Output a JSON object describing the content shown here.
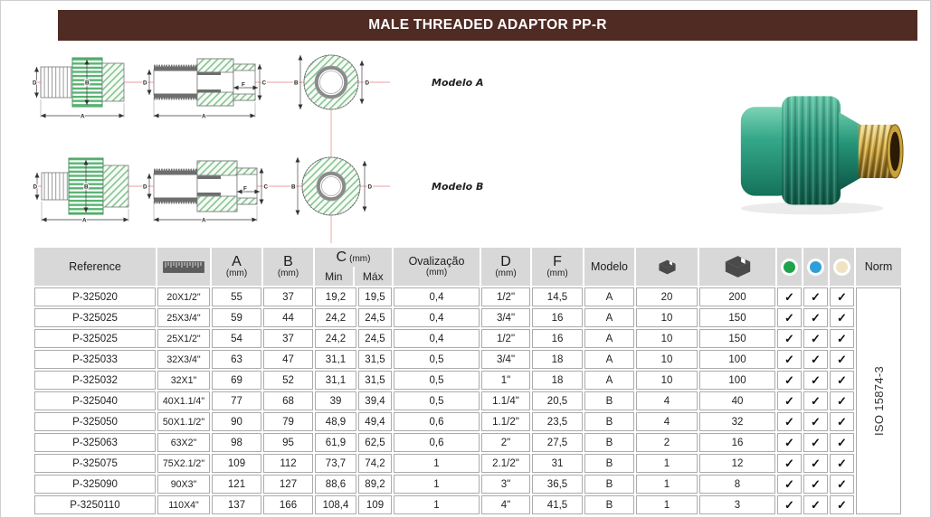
{
  "title": "MALE THREADED ADAPTOR PP-R",
  "drawings": {
    "model_a_label": "Modelo A",
    "model_b_label": "Modelo B",
    "dims": {
      "a": "A",
      "b": "B",
      "c": "C",
      "d": "D",
      "f": "F"
    }
  },
  "table": {
    "header": {
      "reference": "Reference",
      "a": "A",
      "b": "B",
      "c": "C",
      "d": "D",
      "f": "F",
      "unit": "(mm)",
      "min": "Min",
      "max": "Máx",
      "ovalizacao": "Ovalização",
      "modelo": "Modelo",
      "norm": "Norm",
      "icons": {
        "size": "ruler-icon",
        "qty_inner": "box-small-icon",
        "qty_carton": "box-carton-icon",
        "dot_green": "color-dot-green",
        "dot_blue": "color-dot-blue",
        "dot_cream": "color-dot-cream"
      }
    },
    "check_glyph": "✓",
    "norm_value": "ISO 15874-3",
    "rows": [
      {
        "reference": "P-325020",
        "size": "20X1/2\"",
        "a": "55",
        "b": "37",
        "c_min": "19,2",
        "c_max": "19,5",
        "oval": "0,4",
        "d": "1/2\"",
        "f": "14,5",
        "modelo": "A",
        "qty_inner": "20",
        "qty_carton": "200",
        "checks": [
          true,
          true,
          true
        ]
      },
      {
        "reference": "P-325025",
        "size": "25X3/4\"",
        "a": "59",
        "b": "44",
        "c_min": "24,2",
        "c_max": "24,5",
        "oval": "0,4",
        "d": "3/4\"",
        "f": "16",
        "modelo": "A",
        "qty_inner": "10",
        "qty_carton": "150",
        "checks": [
          true,
          true,
          true
        ]
      },
      {
        "reference": "P-325025",
        "size": "25X1/2\"",
        "a": "54",
        "b": "37",
        "c_min": "24,2",
        "c_max": "24,5",
        "oval": "0,4",
        "d": "1/2\"",
        "f": "16",
        "modelo": "A",
        "qty_inner": "10",
        "qty_carton": "150",
        "checks": [
          true,
          true,
          true
        ]
      },
      {
        "reference": "P-325033",
        "size": "32X3/4\"",
        "a": "63",
        "b": "47",
        "c_min": "31,1",
        "c_max": "31,5",
        "oval": "0,5",
        "d": "3/4\"",
        "f": "18",
        "modelo": "A",
        "qty_inner": "10",
        "qty_carton": "100",
        "checks": [
          true,
          true,
          true
        ]
      },
      {
        "reference": "P-325032",
        "size": "32X1\"",
        "a": "69",
        "b": "52",
        "c_min": "31,1",
        "c_max": "31,5",
        "oval": "0,5",
        "d": "1\"",
        "f": "18",
        "modelo": "A",
        "qty_inner": "10",
        "qty_carton": "100",
        "checks": [
          true,
          true,
          true
        ]
      },
      {
        "reference": "P-325040",
        "size": "40X1.1/4\"",
        "a": "77",
        "b": "68",
        "c_min": "39",
        "c_max": "39,4",
        "oval": "0,5",
        "d": "1.1/4\"",
        "f": "20,5",
        "modelo": "B",
        "qty_inner": "4",
        "qty_carton": "40",
        "checks": [
          true,
          true,
          true
        ]
      },
      {
        "reference": "P-325050",
        "size": "50X1.1/2\"",
        "a": "90",
        "b": "79",
        "c_min": "48,9",
        "c_max": "49,4",
        "oval": "0,6",
        "d": "1.1/2\"",
        "f": "23,5",
        "modelo": "B",
        "qty_inner": "4",
        "qty_carton": "32",
        "checks": [
          true,
          true,
          true
        ]
      },
      {
        "reference": "P-325063",
        "size": "63X2\"",
        "a": "98",
        "b": "95",
        "c_min": "61,9",
        "c_max": "62,5",
        "oval": "0,6",
        "d": "2\"",
        "f": "27,5",
        "modelo": "B",
        "qty_inner": "2",
        "qty_carton": "16",
        "checks": [
          true,
          true,
          true
        ]
      },
      {
        "reference": "P-325075",
        "size": "75X2.1/2\"",
        "a": "109",
        "b": "112",
        "c_min": "73,7",
        "c_max": "74,2",
        "oval": "1",
        "d": "2.1/2\"",
        "f": "31",
        "modelo": "B",
        "qty_inner": "1",
        "qty_carton": "12",
        "checks": [
          true,
          true,
          true
        ]
      },
      {
        "reference": "P-325090",
        "size": "90X3\"",
        "a": "121",
        "b": "127",
        "c_min": "88,6",
        "c_max": "89,2",
        "oval": "1",
        "d": "3\"",
        "f": "36,5",
        "modelo": "B",
        "qty_inner": "1",
        "qty_carton": "8",
        "checks": [
          true,
          true,
          true
        ]
      },
      {
        "reference": "P-3250110",
        "size": "110X4\"",
        "a": "137",
        "b": "166",
        "c_min": "108,4",
        "c_max": "109",
        "oval": "1",
        "d": "4\"",
        "f": "41,5",
        "modelo": "B",
        "qty_inner": "1",
        "qty_carton": "3",
        "checks": [
          true,
          true,
          true
        ]
      }
    ]
  },
  "colors": {
    "title_bar": "#4f2b24",
    "header_bg": "#d8d8d8",
    "dot_green": "#1ea24b",
    "dot_blue": "#2f9fd8",
    "dot_cream": "#efe3c2",
    "drawing_green": "#5ab473",
    "centerline_pink": "#ef9e9e",
    "product_green": "#2aa184",
    "brass": "#c9a23b"
  }
}
